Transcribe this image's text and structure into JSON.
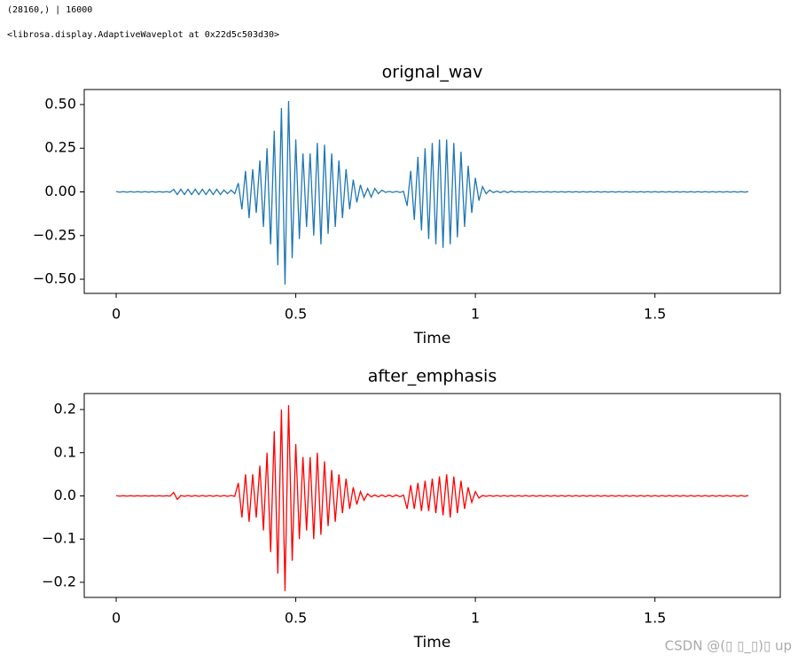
{
  "header": {
    "lines": [
      "(28160,) | 16000",
      "<librosa.display.AdaptiveWaveplot at 0x22d5c503d30>"
    ]
  },
  "watermark": "CSDN @(▯ ▯_▯)▯ up",
  "chart_data": [
    {
      "type": "line",
      "title": "orignal_wav",
      "xlabel": "Time",
      "color": "#1f77b4",
      "xlim": [
        -0.089,
        1.849
      ],
      "ylim": [
        -0.581,
        0.586
      ],
      "xticks": [
        0,
        0.5,
        1,
        1.5
      ],
      "yticks": [
        {
          "value": 0.5,
          "label": "0.50"
        },
        {
          "value": 0.25,
          "label": "0.25"
        },
        {
          "value": 0,
          "label": "0.00"
        },
        {
          "value": -0.25,
          "label": "−0.25"
        },
        {
          "value": -0.5,
          "label": "−0.50"
        }
      ],
      "x": [
        0,
        0.01,
        0.02,
        0.03,
        0.04,
        0.05,
        0.06,
        0.07,
        0.08,
        0.09,
        0.1,
        0.11,
        0.12,
        0.13,
        0.14,
        0.15,
        0.16,
        0.17,
        0.18,
        0.19,
        0.2,
        0.21,
        0.22,
        0.23,
        0.24,
        0.25,
        0.26,
        0.27,
        0.28,
        0.29,
        0.3,
        0.31,
        0.32,
        0.33,
        0.34,
        0.35,
        0.36,
        0.37,
        0.38,
        0.39,
        0.4,
        0.41,
        0.42,
        0.43,
        0.44,
        0.45,
        0.46,
        0.47,
        0.48,
        0.49,
        0.5,
        0.51,
        0.52,
        0.53,
        0.54,
        0.55,
        0.56,
        0.57,
        0.58,
        0.59,
        0.6,
        0.61,
        0.62,
        0.63,
        0.64,
        0.65,
        0.66,
        0.67,
        0.68,
        0.69,
        0.7,
        0.71,
        0.72,
        0.73,
        0.74,
        0.75,
        0.76,
        0.77,
        0.78,
        0.79,
        0.8,
        0.81,
        0.82,
        0.83,
        0.84,
        0.85,
        0.86,
        0.87,
        0.88,
        0.89,
        0.9,
        0.91,
        0.92,
        0.93,
        0.94,
        0.95,
        0.96,
        0.97,
        0.98,
        0.99,
        1,
        1.01,
        1.02,
        1.03,
        1.04,
        1.05,
        1.06,
        1.07,
        1.08,
        1.09,
        1.1,
        1.11,
        1.12,
        1.13,
        1.14,
        1.15,
        1.16,
        1.17,
        1.18,
        1.19,
        1.2,
        1.21,
        1.22,
        1.23,
        1.24,
        1.25,
        1.26,
        1.27,
        1.28,
        1.29,
        1.3,
        1.31,
        1.32,
        1.33,
        1.34,
        1.35,
        1.36,
        1.37,
        1.38,
        1.39,
        1.4,
        1.41,
        1.42,
        1.43,
        1.44,
        1.45,
        1.46,
        1.47,
        1.48,
        1.49,
        1.5,
        1.51,
        1.52,
        1.53,
        1.54,
        1.55,
        1.56,
        1.57,
        1.58,
        1.59,
        1.6,
        1.61,
        1.62,
        1.63,
        1.64,
        1.65,
        1.66,
        1.67,
        1.68,
        1.69,
        1.7,
        1.71,
        1.72,
        1.73,
        1.74,
        1.75,
        1.76
      ],
      "values": [
        0.002,
        -0.002,
        0.002,
        -0.002,
        0.002,
        -0.002,
        0.002,
        -0.002,
        0.002,
        -0.002,
        0.002,
        -0.002,
        0.002,
        -0.002,
        0.002,
        -0.002,
        0.015,
        -0.015,
        0.015,
        -0.015,
        0.015,
        -0.015,
        0.015,
        -0.015,
        0.015,
        -0.015,
        0.015,
        -0.015,
        0.015,
        -0.015,
        0.01,
        -0.01,
        0.01,
        -0.01,
        0.05,
        -0.1,
        0.12,
        -0.15,
        0.13,
        -0.12,
        0.18,
        -0.2,
        0.25,
        -0.3,
        0.35,
        -0.42,
        0.48,
        -0.53,
        0.52,
        -0.38,
        0.3,
        -0.27,
        0.22,
        -0.2,
        0.22,
        -0.25,
        0.28,
        -0.3,
        0.27,
        -0.24,
        0.22,
        -0.2,
        0.18,
        -0.15,
        0.13,
        -0.1,
        0.07,
        -0.06,
        0.04,
        -0.03,
        0.02,
        -0.03,
        0.02,
        -0.01,
        0.01,
        -0.003,
        0.003,
        -0.003,
        0.003,
        -0.003,
        0.003,
        -0.08,
        0.12,
        -0.16,
        0.2,
        -0.22,
        0.25,
        -0.27,
        0.28,
        -0.3,
        0.3,
        -0.32,
        0.3,
        -0.3,
        0.28,
        -0.26,
        0.23,
        -0.2,
        0.15,
        -0.12,
        0.08,
        -0.05,
        0.03,
        -0.01,
        0.01,
        -0.004,
        0.004,
        -0.004,
        0.004,
        -0.004,
        0.004,
        -0.002,
        0.002,
        -0.002,
        0.002,
        -0.002,
        0.002,
        -0.002,
        0.002,
        -0.002,
        0.002,
        -0.002,
        0.002,
        -0.002,
        0.002,
        -0.002,
        0.002,
        -0.002,
        0.002,
        -0.002,
        0.002,
        -0.002,
        0.002,
        -0.002,
        0.002,
        -0.002,
        0.002,
        -0.002,
        0.002,
        -0.002,
        0.002,
        -0.002,
        0.002,
        -0.002,
        0.002,
        -0.002,
        0.002,
        -0.002,
        0.002,
        -0.002,
        0.002,
        -0.002,
        0.002,
        -0.002,
        0.002,
        -0.002,
        0.002,
        -0.002,
        0.002,
        -0.002,
        0.002,
        -0.002,
        0.002,
        -0.002,
        0.002,
        -0.002,
        0.002,
        -0.002,
        0.002,
        -0.002,
        0.002,
        -0.002,
        0.002,
        -0.002,
        0.002,
        -0.002,
        0.002
      ]
    },
    {
      "type": "line",
      "title": "after_emphasis",
      "xlabel": "Time",
      "color": "#ff0000",
      "xlim": [
        -0.089,
        1.849
      ],
      "ylim": [
        -0.235,
        0.237
      ],
      "xticks": [
        0,
        0.5,
        1,
        1.5
      ],
      "yticks": [
        0.2,
        0.1,
        {
          "value": 0,
          "label": "0.0"
        },
        {
          "value": -0.1,
          "label": "−0.1"
        },
        {
          "value": -0.2,
          "label": "−0.2"
        }
      ],
      "x": [
        0,
        0.01,
        0.02,
        0.03,
        0.04,
        0.05,
        0.06,
        0.07,
        0.08,
        0.09,
        0.1,
        0.11,
        0.12,
        0.13,
        0.14,
        0.15,
        0.16,
        0.17,
        0.18,
        0.19,
        0.2,
        0.21,
        0.22,
        0.23,
        0.24,
        0.25,
        0.26,
        0.27,
        0.28,
        0.29,
        0.3,
        0.31,
        0.32,
        0.33,
        0.34,
        0.35,
        0.36,
        0.37,
        0.38,
        0.39,
        0.4,
        0.41,
        0.42,
        0.43,
        0.44,
        0.45,
        0.46,
        0.47,
        0.48,
        0.49,
        0.5,
        0.51,
        0.52,
        0.53,
        0.54,
        0.55,
        0.56,
        0.57,
        0.58,
        0.59,
        0.6,
        0.61,
        0.62,
        0.63,
        0.64,
        0.65,
        0.66,
        0.67,
        0.68,
        0.69,
        0.7,
        0.71,
        0.72,
        0.73,
        0.74,
        0.75,
        0.76,
        0.77,
        0.78,
        0.79,
        0.8,
        0.81,
        0.82,
        0.83,
        0.84,
        0.85,
        0.86,
        0.87,
        0.88,
        0.89,
        0.9,
        0.91,
        0.92,
        0.93,
        0.94,
        0.95,
        0.96,
        0.97,
        0.98,
        0.99,
        1,
        1.01,
        1.02,
        1.03,
        1.04,
        1.05,
        1.06,
        1.07,
        1.08,
        1.09,
        1.1,
        1.11,
        1.12,
        1.13,
        1.14,
        1.15,
        1.16,
        1.17,
        1.18,
        1.19,
        1.2,
        1.21,
        1.22,
        1.23,
        1.24,
        1.25,
        1.26,
        1.27,
        1.28,
        1.29,
        1.3,
        1.31,
        1.32,
        1.33,
        1.34,
        1.35,
        1.36,
        1.37,
        1.38,
        1.39,
        1.4,
        1.41,
        1.42,
        1.43,
        1.44,
        1.45,
        1.46,
        1.47,
        1.48,
        1.49,
        1.5,
        1.51,
        1.52,
        1.53,
        1.54,
        1.55,
        1.56,
        1.57,
        1.58,
        1.59,
        1.6,
        1.61,
        1.62,
        1.63,
        1.64,
        1.65,
        1.66,
        1.67,
        1.68,
        1.69,
        1.7,
        1.71,
        1.72,
        1.73,
        1.74,
        1.75,
        1.76
      ],
      "values": [
        0.0005,
        -0.0005,
        0.0005,
        -0.0005,
        0.0005,
        -0.0005,
        0.0005,
        -0.0005,
        0.0005,
        -0.0005,
        0.0005,
        -0.0005,
        0.0005,
        -0.0005,
        0.0005,
        -0.0005,
        0.008,
        -0.008,
        0.001,
        -0.001,
        0.001,
        -0.001,
        0.001,
        -0.001,
        0.001,
        -0.001,
        0.001,
        -0.001,
        0.001,
        -0.001,
        0.001,
        -0.001,
        0.001,
        -0.001,
        0.03,
        -0.05,
        0.05,
        -0.06,
        0.05,
        -0.05,
        0.07,
        -0.08,
        0.1,
        -0.13,
        0.15,
        -0.18,
        0.2,
        -0.22,
        0.21,
        -0.15,
        0.12,
        -0.1,
        0.09,
        -0.08,
        0.09,
        -0.1,
        0.1,
        -0.09,
        0.08,
        -0.07,
        0.06,
        -0.06,
        0.05,
        -0.04,
        0.04,
        -0.03,
        0.02,
        -0.02,
        0.01,
        -0.01,
        0.005,
        -0.002,
        0.002,
        -0.002,
        0.002,
        -0.002,
        0.002,
        -0.002,
        0.002,
        -0.002,
        0.002,
        -0.03,
        0.025,
        -0.03,
        0.03,
        -0.035,
        0.035,
        -0.035,
        0.04,
        -0.04,
        0.045,
        -0.045,
        0.05,
        -0.05,
        0.045,
        -0.04,
        0.035,
        -0.03,
        0.02,
        -0.015,
        0.01,
        -0.005,
        0.001,
        -0.001,
        0.001,
        -0.001,
        0.001,
        -0.001,
        0.001,
        -0.001,
        0.001,
        -0.001,
        0.001,
        -0.001,
        0.001,
        -0.001,
        0.001,
        -0.001,
        0.001,
        -0.001,
        0.001,
        -0.001,
        0.001,
        -0.001,
        0.001,
        -0.001,
        0.001,
        -0.001,
        0.001,
        -0.001,
        0.001,
        -0.001,
        0.001,
        -0.001,
        0.001,
        -0.001,
        0.001,
        -0.001,
        0.001,
        -0.001,
        0.001,
        -0.001,
        0.001,
        -0.001,
        0.001,
        -0.001,
        0.001,
        -0.001,
        0.001,
        -0.001,
        0.001,
        -0.001,
        0.001,
        -0.001,
        0.001,
        -0.001,
        0.001,
        -0.001,
        0.001,
        -0.001,
        0.001,
        -0.001,
        0.001,
        -0.001,
        0.001,
        -0.001,
        0.001,
        -0.001,
        0.001,
        -0.001,
        0.001,
        -0.001,
        0.001,
        -0.001,
        0.001,
        -0.001,
        0.001
      ]
    }
  ]
}
